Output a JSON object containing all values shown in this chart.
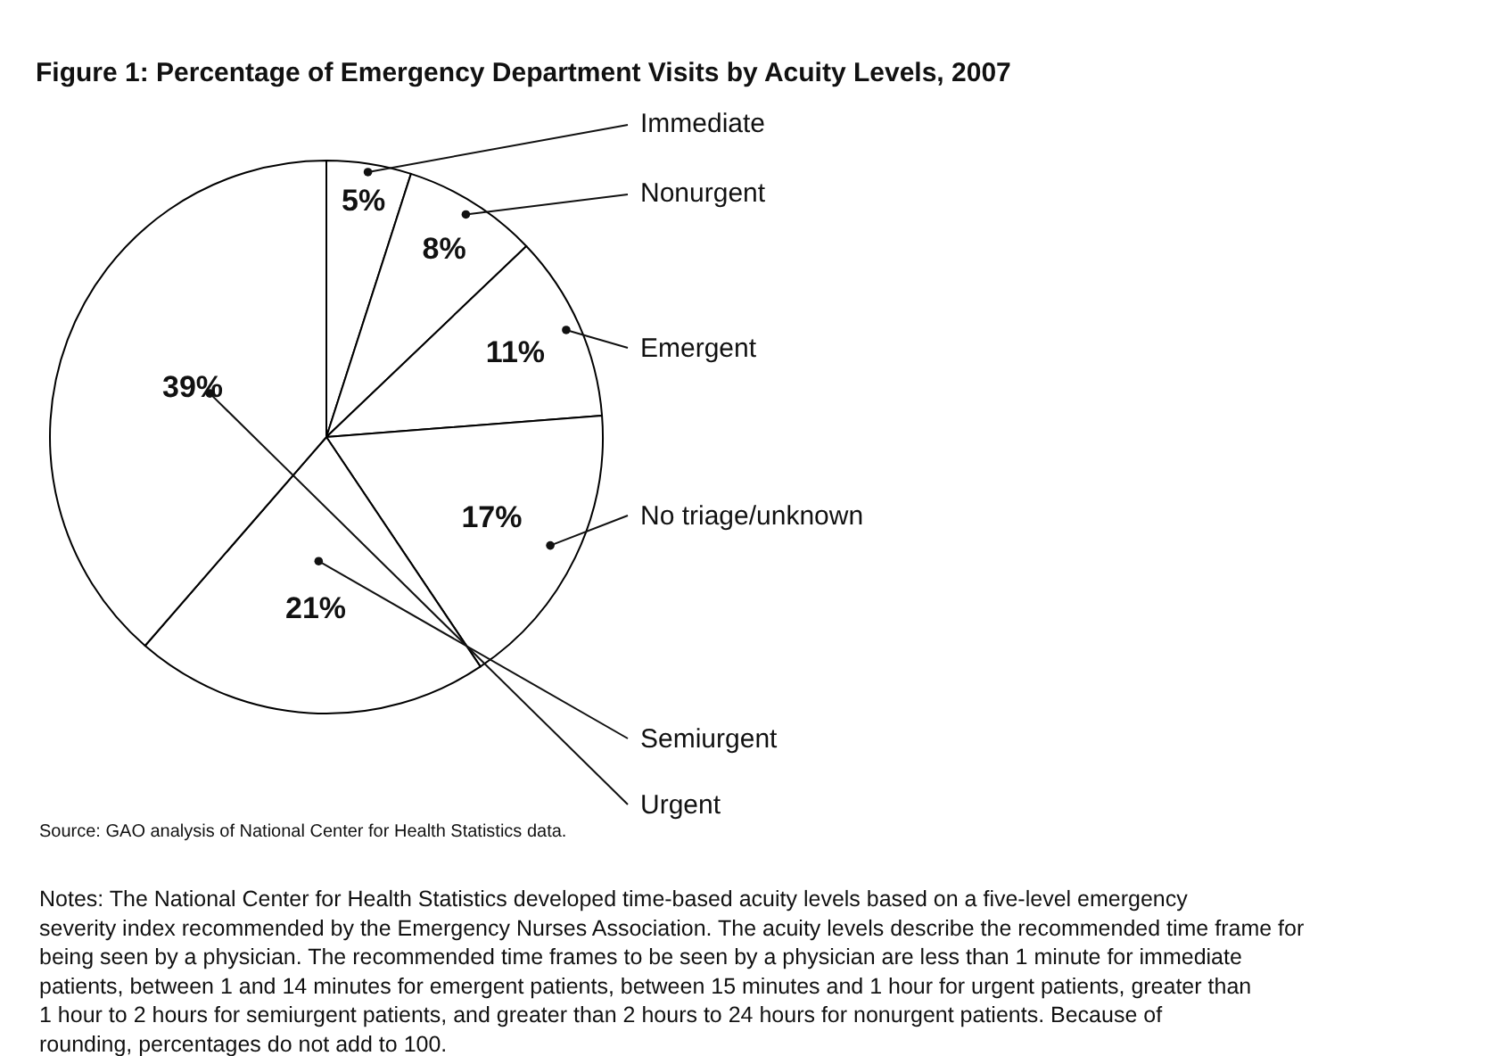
{
  "chart_data": {
    "type": "pie",
    "title": "Figure 1: Percentage of Emergency Department Visits by Acuity Levels, 2007",
    "categories": [
      "Immediate",
      "Nonurgent",
      "Emergent",
      "No triage/unknown",
      "Semiurgent",
      "Urgent"
    ],
    "values": [
      5,
      8,
      11,
      17,
      21,
      39
    ],
    "value_labels": [
      "5%",
      "8%",
      "11%",
      "17%",
      "21%",
      "39%"
    ],
    "colors": [
      "#ffffff",
      "#ffffff",
      "#ffffff",
      "#ffffff",
      "#ffffff",
      "#ffffff"
    ],
    "legend": false,
    "annotations": [
      "Source: GAO analysis of National Center for Health Statistics data.",
      "Notes: The National Center for Health Statistics developed time-based acuity levels based on a five-level emergency severity index recommended by the Emergency Nurses Association. The acuity levels describe the recommended time frame for being seen by a physician. The recommended time frames to be seen by a physician are less than 1 minute for immediate patients, between 1 and 14 minutes for emergent patients, between 15 minutes and 1 hour for urgent patients, greater than 1 hour to 2 hours for semiurgent patients, and greater than 2 hours to 24 hours for nonurgent patients. Because of rounding, percentages do not add to 100."
    ]
  }
}
